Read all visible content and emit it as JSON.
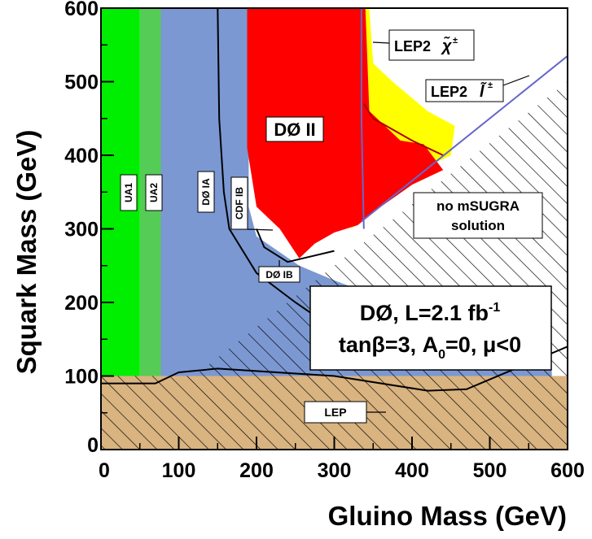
{
  "chart_data": {
    "type": "area",
    "xlabel": "Gluino Mass (GeV)",
    "ylabel": "Squark Mass (GeV)",
    "xlim": [
      0,
      600
    ],
    "ylim": [
      0,
      600
    ],
    "xticks": [
      "0",
      "100",
      "200",
      "300",
      "400",
      "500",
      "600"
    ],
    "yticks": [
      "0",
      "100",
      "200",
      "300",
      "400",
      "500",
      "600"
    ],
    "grid": false,
    "legend": "none",
    "info_box": {
      "line1": "DØ, L=2.1 fb",
      "line1_sup": "-1",
      "line2": "tanβ=3, A",
      "line2_sub": "0",
      "line2_end": "=0, μ<0"
    },
    "labels": {
      "ua1": "UA1",
      "ua2": "UA2",
      "d0_ia": "DØ IA",
      "cdf_ib": "CDF IB",
      "d0_ib": "DØ IB",
      "d0_ii": "DØ II",
      "lep": "LEP",
      "lep2_chargino": "LEP2",
      "lep2_chargino_sym": "χ̃",
      "lep2_chargino_sup": "±",
      "lep2_slepton": "LEP2",
      "lep2_slepton_sym": "l̃",
      "lep2_slepton_sup": "±",
      "no_msugra_1": "no mSUGRA",
      "no_msugra_2": "solution"
    },
    "colors": {
      "ua1": "#00ee00",
      "ua2": "#55cc55",
      "cdf_d0_run1": "#7b98d2",
      "d0_ii": "#ff0000",
      "yellow_band": "#ffff00",
      "lep": "#d9b380",
      "lep2_slepton_line": "#6666cc",
      "hatch": "#000000"
    },
    "regions": {
      "ua1": [
        [
          0,
          100
        ],
        [
          0,
          600
        ],
        [
          50,
          600
        ],
        [
          50,
          100
        ]
      ],
      "ua2": [
        [
          50,
          100
        ],
        [
          50,
          600
        ],
        [
          77,
          600
        ],
        [
          77,
          100
        ]
      ],
      "blue_run1": [
        [
          77,
          100
        ],
        [
          77,
          600
        ],
        [
          190,
          600
        ],
        [
          190,
          330
        ],
        [
          200,
          290
        ],
        [
          255,
          250
        ],
        [
          300,
          230
        ],
        [
          350,
          210
        ],
        [
          400,
          195
        ],
        [
          470,
          180
        ],
        [
          575,
          170
        ],
        [
          580,
          100
        ]
      ],
      "lep": [
        [
          0,
          0
        ],
        [
          0,
          100
        ],
        [
          600,
          100
        ],
        [
          600,
          0
        ]
      ],
      "no_solution_triangle": [
        [
          120,
          100
        ],
        [
          600,
          500
        ],
        [
          600,
          100
        ]
      ],
      "yellow": [
        [
          316,
          600
        ],
        [
          322,
          300
        ],
        [
          390,
          370
        ],
        [
          450,
          400
        ],
        [
          455,
          440
        ],
        [
          420,
          460
        ],
        [
          375,
          500
        ],
        [
          350,
          525
        ],
        [
          345,
          600
        ]
      ],
      "red_d0_ii": [
        [
          188,
          600
        ],
        [
          188,
          410
        ],
        [
          200,
          330
        ],
        [
          230,
          300
        ],
        [
          255,
          260
        ],
        [
          275,
          280
        ],
        [
          300,
          295
        ],
        [
          330,
          305
        ],
        [
          360,
          330
        ],
        [
          400,
          360
        ],
        [
          440,
          380
        ],
        [
          415,
          415
        ],
        [
          385,
          420
        ],
        [
          345,
          460
        ],
        [
          340,
          600
        ]
      ]
    },
    "curves": {
      "d0_ia": [
        [
          150,
          600
        ],
        [
          152,
          450
        ],
        [
          158,
          350
        ],
        [
          165,
          300
        ],
        [
          200,
          240
        ],
        [
          250,
          200
        ],
        [
          275,
          182
        ],
        [
          300,
          180
        ]
      ],
      "d0_ib": [
        [
          200,
          300
        ],
        [
          210,
          275
        ],
        [
          240,
          255
        ],
        [
          300,
          270
        ]
      ],
      "lep_limit": [
        [
          0,
          90
        ],
        [
          70,
          90
        ],
        [
          100,
          105
        ],
        [
          150,
          110
        ],
        [
          300,
          100
        ],
        [
          420,
          80
        ],
        [
          470,
          82
        ],
        [
          600,
          140
        ]
      ],
      "lep2_chargino": [
        [
          335,
          600
        ],
        [
          335,
          450
        ],
        [
          338,
          300
        ]
      ],
      "lep2_slepton": [
        [
          335,
          310
        ],
        [
          600,
          535
        ]
      ],
      "red_edge_inner": [
        [
          338,
          470
        ],
        [
          350,
          450
        ],
        [
          400,
          420
        ],
        [
          440,
          400
        ]
      ]
    }
  }
}
